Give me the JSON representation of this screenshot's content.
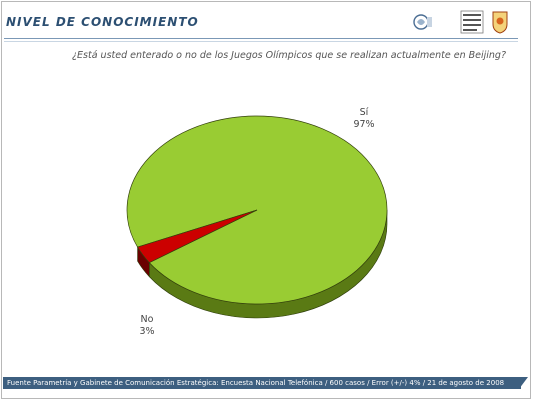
{
  "header": {
    "title": "NIVEL DE CONOCIMIENTO"
  },
  "question": "¿Está usted enterado o no de los Juegos Olímpicos que se realizan actualmente en Beijing?",
  "footer": {
    "source": "Fuente Parametría y Gabinete de Comunicación Estratégica: Encuesta Nacional Telefónica / 600 casos / Error (+/-) 4% / 21 de agosto de 2008"
  },
  "colors": {
    "si_top": "#99cc33",
    "si_side": "#5a7a14",
    "no_top": "#cc0000",
    "no_side": "#6a0000",
    "header": "#2c4f72",
    "footer_bg": "#3d5f80"
  },
  "chart_data": {
    "type": "pie",
    "style": "3d",
    "slices": [
      {
        "label": "Sí",
        "value": 97,
        "value_label": "97%",
        "color": "#99cc33"
      },
      {
        "label": "No",
        "value": 3,
        "value_label": "3%",
        "color": "#cc0000"
      }
    ]
  }
}
